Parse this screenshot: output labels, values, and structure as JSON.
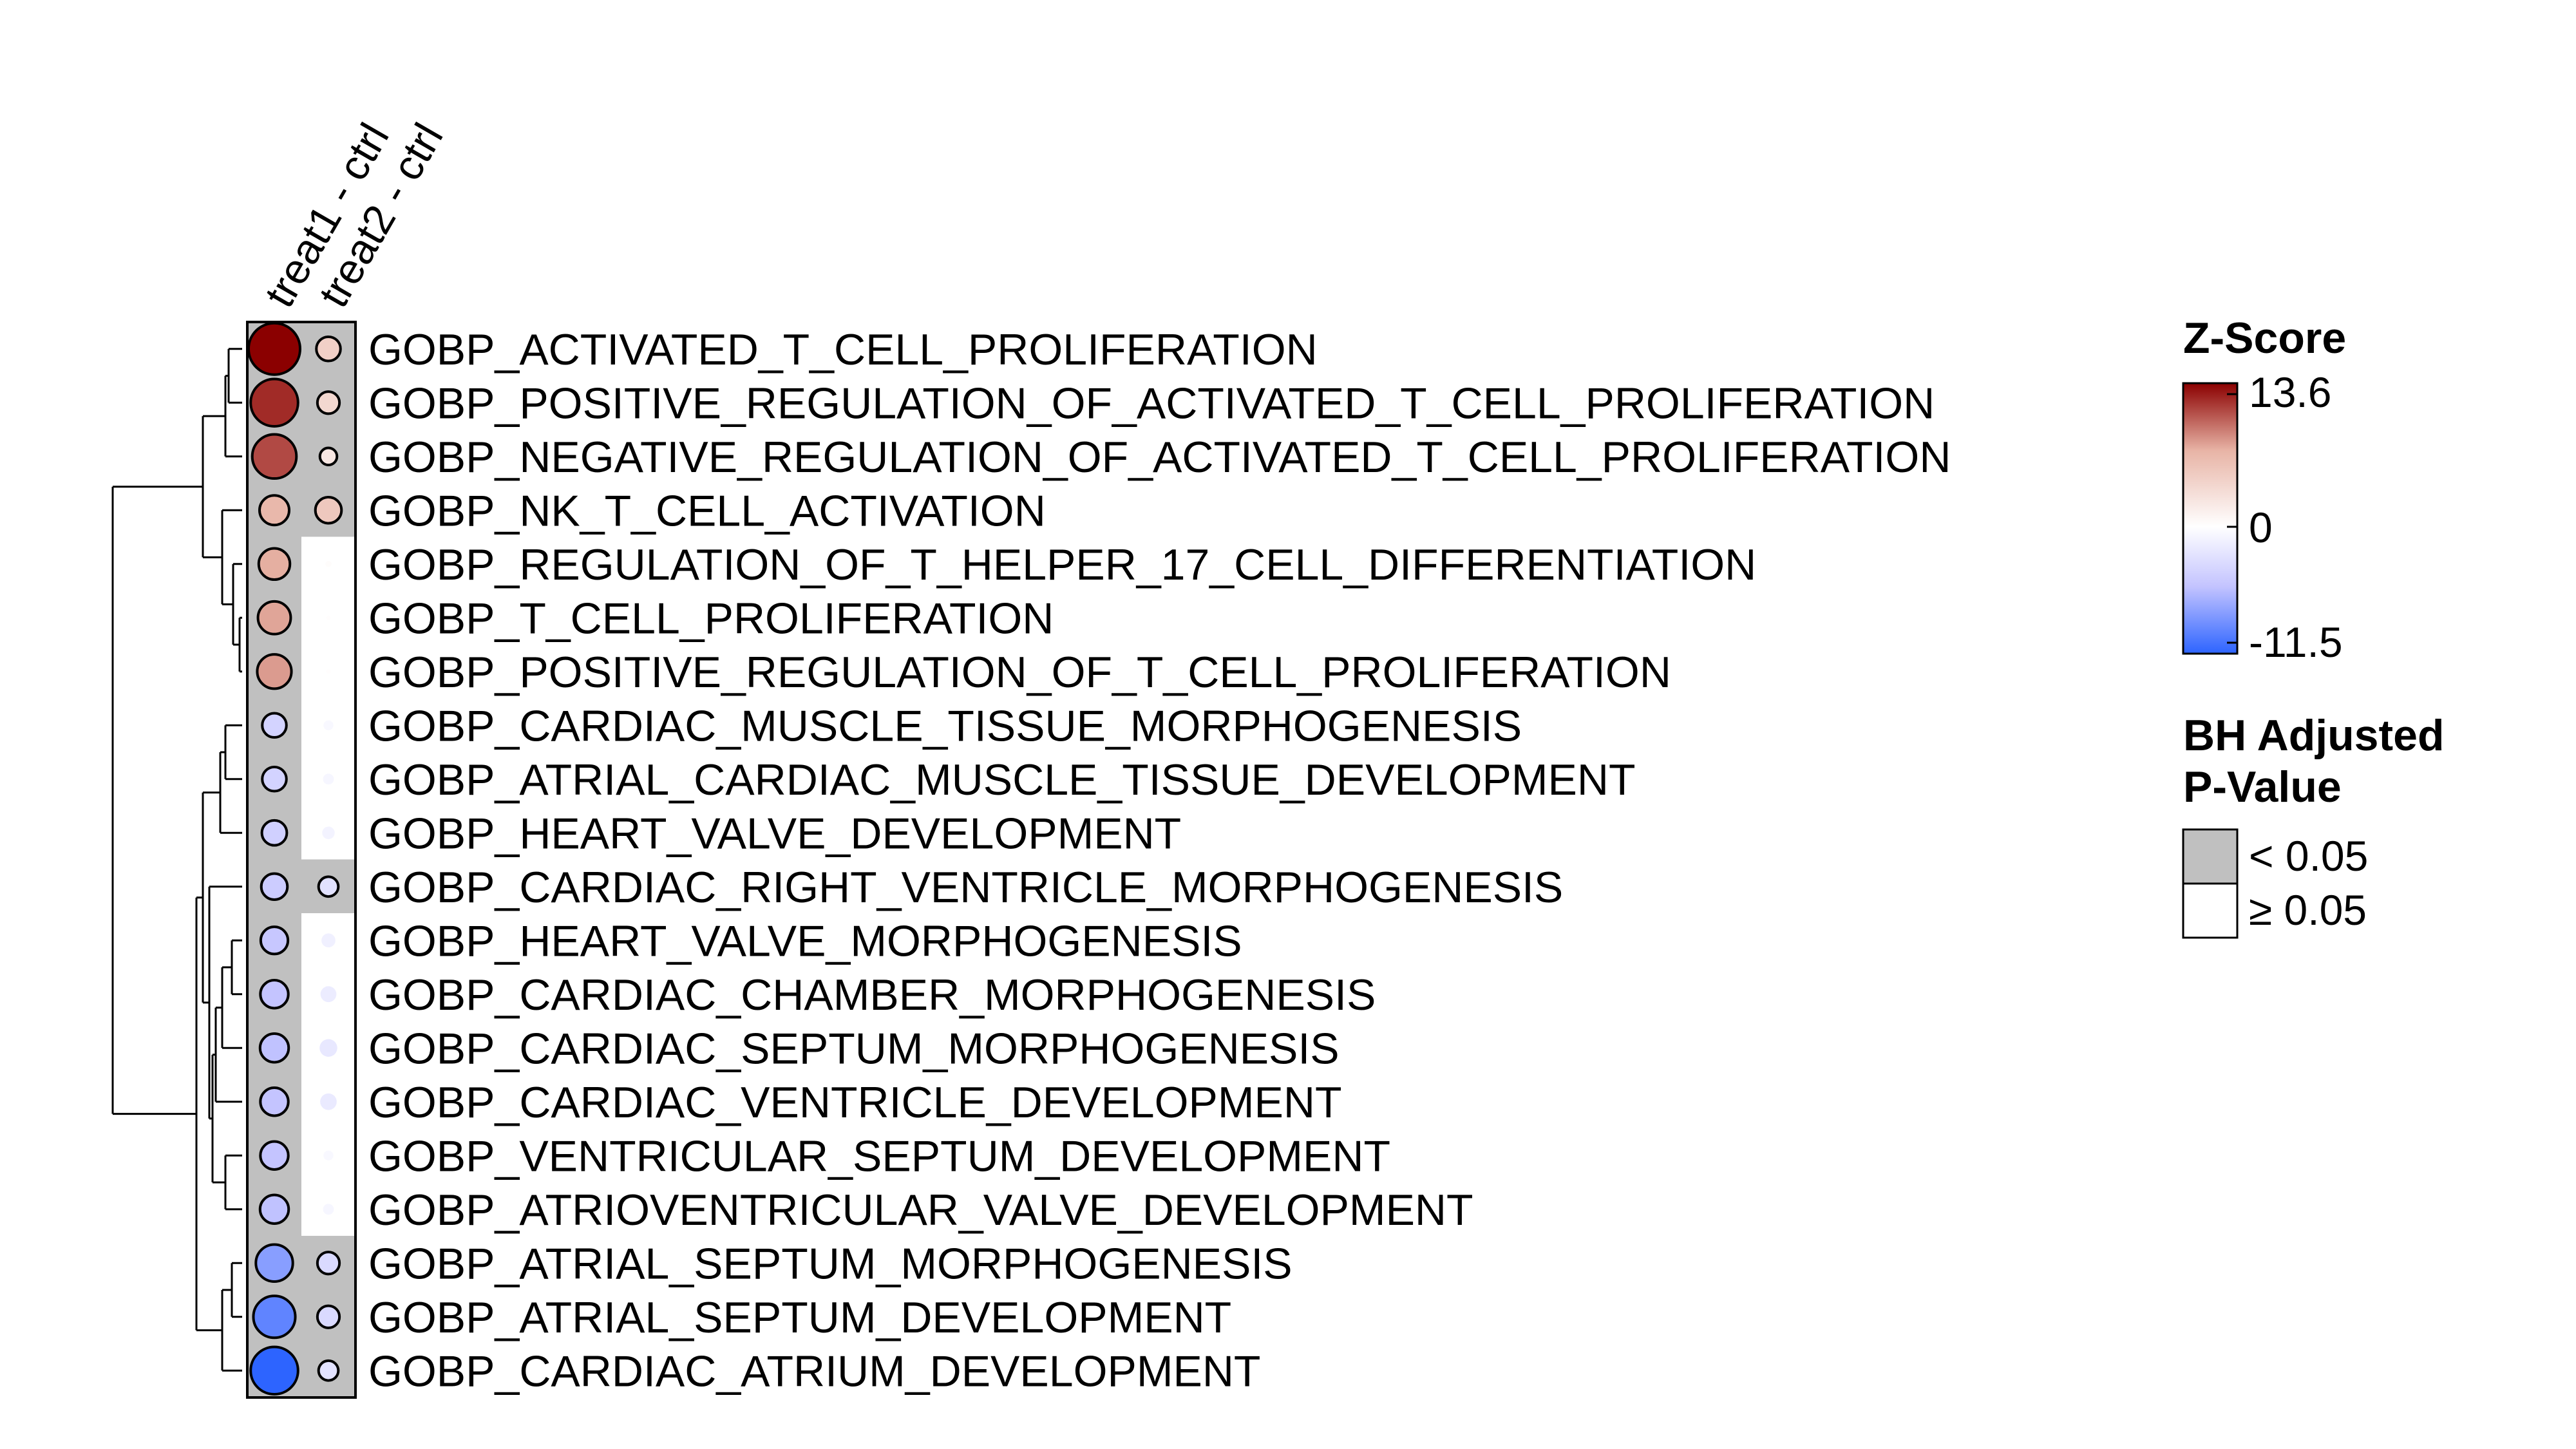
{
  "chart_data": {
    "type": "heatmap",
    "columns": [
      "treat1 - ctrl",
      "treat2 - ctrl"
    ],
    "rows": [
      "GOBP_ACTIVATED_T_CELL_PROLIFERATION",
      "GOBP_POSITIVE_REGULATION_OF_ACTIVATED_T_CELL_PROLIFERATION",
      "GOBP_NEGATIVE_REGULATION_OF_ACTIVATED_T_CELL_PROLIFERATION",
      "GOBP_NK_T_CELL_ACTIVATION",
      "GOBP_REGULATION_OF_T_HELPER_17_CELL_DIFFERENTIATION",
      "GOBP_T_CELL_PROLIFERATION",
      "GOBP_POSITIVE_REGULATION_OF_T_CELL_PROLIFERATION",
      "GOBP_CARDIAC_MUSCLE_TISSUE_MORPHOGENESIS",
      "GOBP_ATRIAL_CARDIAC_MUSCLE_TISSUE_DEVELOPMENT",
      "GOBP_HEART_VALVE_DEVELOPMENT",
      "GOBP_CARDIAC_RIGHT_VENTRICLE_MORPHOGENESIS",
      "GOBP_HEART_VALVE_MORPHOGENESIS",
      "GOBP_CARDIAC_CHAMBER_MORPHOGENESIS",
      "GOBP_CARDIAC_SEPTUM_MORPHOGENESIS",
      "GOBP_CARDIAC_VENTRICLE_DEVELOPMENT",
      "GOBP_VENTRICULAR_SEPTUM_DEVELOPMENT",
      "GOBP_ATRIOVENTRICULAR_VALVE_DEVELOPMENT",
      "GOBP_ATRIAL_SEPTUM_MORPHOGENESIS",
      "GOBP_ATRIAL_SEPTUM_DEVELOPMENT",
      "GOBP_CARDIAC_ATRIUM_DEVELOPMENT"
    ],
    "z_scores": [
      [
        13.6,
        3.0
      ],
      [
        11.5,
        2.5
      ],
      [
        10.0,
        1.5
      ],
      [
        4.5,
        3.5
      ],
      [
        5.0,
        0.2
      ],
      [
        5.5,
        0.1
      ],
      [
        6.0,
        0.1
      ],
      [
        -3.0,
        -0.5
      ],
      [
        -3.0,
        -0.6
      ],
      [
        -3.2,
        -0.8
      ],
      [
        -3.5,
        -2.0
      ],
      [
        -3.8,
        -1.0
      ],
      [
        -4.0,
        -1.3
      ],
      [
        -4.2,
        -1.6
      ],
      [
        -4.0,
        -1.4
      ],
      [
        -4.0,
        -0.5
      ],
      [
        -4.2,
        -0.6
      ],
      [
        -7.0,
        -2.5
      ],
      [
        -9.0,
        -2.5
      ],
      [
        -11.5,
        -2.0
      ]
    ],
    "significant": [
      [
        true,
        true
      ],
      [
        true,
        true
      ],
      [
        true,
        true
      ],
      [
        true,
        true
      ],
      [
        true,
        false
      ],
      [
        true,
        false
      ],
      [
        true,
        false
      ],
      [
        true,
        false
      ],
      [
        true,
        false
      ],
      [
        true,
        false
      ],
      [
        true,
        true
      ],
      [
        true,
        false
      ],
      [
        true,
        false
      ],
      [
        true,
        false
      ],
      [
        true,
        false
      ],
      [
        true,
        false
      ],
      [
        true,
        false
      ],
      [
        true,
        true
      ],
      [
        true,
        true
      ],
      [
        true,
        true
      ]
    ],
    "color_scale": {
      "title": "Z-Score",
      "max": 13.6,
      "mid": 0,
      "min": -11.5,
      "max_label": "13.6",
      "mid_label": "0",
      "min_label": "-11.5",
      "colors": {
        "high": "#8b0000",
        "mid_high": "#e8b4a6",
        "mid": "#ffffff",
        "mid_low": "#c4c4ff",
        "low": "#2d64ff"
      }
    },
    "pvalue_legend": {
      "title_line1": "BH Adjusted",
      "title_line2": "P-Value",
      "items": [
        {
          "label": "< 0.05",
          "color": "#c0c0c0"
        },
        {
          "label": "≥ 0.05",
          "color": "#ffffff"
        }
      ]
    },
    "dendrogram_merges": [
      [
        0,
        1
      ],
      [
        20,
        2
      ],
      [
        5,
        6
      ],
      [
        4,
        22
      ],
      [
        3,
        23
      ],
      [
        21,
        24
      ],
      [
        7,
        8
      ],
      [
        26,
        9
      ],
      [
        11,
        12
      ],
      [
        28,
        13
      ],
      [
        29,
        14
      ],
      [
        15,
        16
      ],
      [
        30,
        31
      ],
      [
        10,
        32
      ],
      [
        27,
        33
      ],
      [
        17,
        18
      ],
      [
        35,
        19
      ],
      [
        34,
        36
      ],
      [
        25,
        37
      ]
    ],
    "legend_placement": "right"
  }
}
